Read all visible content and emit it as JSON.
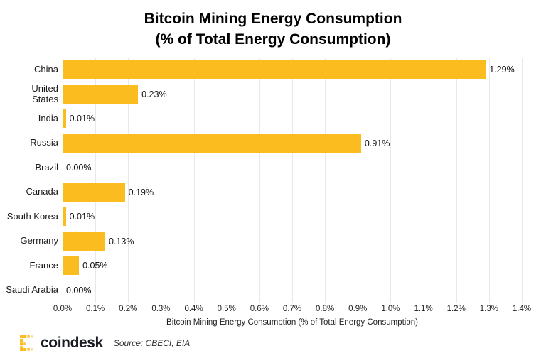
{
  "title": {
    "line1": "Bitcoin Mining Energy Consumption",
    "line2": "(% of Total Energy Consumption)"
  },
  "chart_data": {
    "type": "bar",
    "orientation": "horizontal",
    "title": "Bitcoin Mining Energy Consumption (% of Total Energy Consumption)",
    "categories": [
      "China",
      "United States",
      "India",
      "Russia",
      "Brazil",
      "Canada",
      "South Korea",
      "Germany",
      "France",
      "Saudi Arabia"
    ],
    "label_lines": [
      [
        "China"
      ],
      [
        "United",
        "States"
      ],
      [
        "India"
      ],
      [
        "Russia"
      ],
      [
        "Brazil"
      ],
      [
        "Canada"
      ],
      [
        "South Korea"
      ],
      [
        "Germany"
      ],
      [
        "France"
      ],
      [
        "Saudi Arabia"
      ]
    ],
    "values": [
      1.29,
      0.23,
      0.01,
      0.91,
      0.0,
      0.19,
      0.01,
      0.13,
      0.05,
      0.0
    ],
    "value_labels": [
      "1.29%",
      "0.23%",
      "0.01%",
      "0.91%",
      "0.00%",
      "0.19%",
      "0.01%",
      "0.13%",
      "0.05%",
      "0.00%"
    ],
    "xlabel": "Bitcoin Mining Energy Consumption (% of Total Energy Consumption)",
    "xlim": [
      0,
      1.4
    ],
    "x_ticks": [
      "0.0%",
      "0.1%",
      "0.2%",
      "0.3%",
      "0.4%",
      "0.5%",
      "0.6%",
      "0.7%",
      "0.8%",
      "0.9%",
      "1.0%",
      "1.1%",
      "1.2%",
      "1.3%",
      "1.4%"
    ],
    "grid": true,
    "legend": false
  },
  "footer": {
    "brand": "coindesk",
    "source": "Source: CBECI, EIA"
  },
  "colors": {
    "bar": "#fbbc20",
    "text": "#1a1a1a",
    "grid": "#e9e9e9",
    "background": "#ffffff"
  }
}
